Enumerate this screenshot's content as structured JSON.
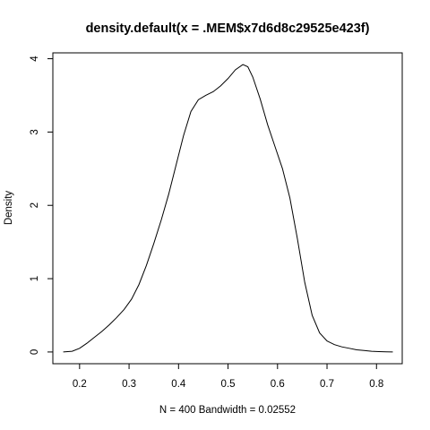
{
  "chart_data": {
    "type": "line",
    "title": "density.default(x = .MEM$x7d6d8c29525e423f)",
    "xlabel": "N = 400   Bandwidth = 0.02552",
    "ylabel": "Density",
    "xlim": [
      0.146,
      0.852
    ],
    "ylim": [
      -0.16,
      4.08
    ],
    "x_ticks": [
      0.2,
      0.3,
      0.4,
      0.5,
      0.6,
      0.7,
      0.8
    ],
    "x_tick_labels": [
      "0.2",
      "0.3",
      "0.4",
      "0.5",
      "0.6",
      "0.7",
      "0.8"
    ],
    "y_ticks": [
      0,
      1,
      2,
      3,
      4
    ],
    "y_tick_labels": [
      "0",
      "1",
      "2",
      "3",
      "4"
    ],
    "grid": false,
    "legend": "none",
    "series": [
      {
        "color": "#000000",
        "x": [
          0.167,
          0.185,
          0.2,
          0.215,
          0.23,
          0.245,
          0.26,
          0.275,
          0.29,
          0.305,
          0.32,
          0.335,
          0.35,
          0.365,
          0.38,
          0.395,
          0.41,
          0.425,
          0.44,
          0.455,
          0.47,
          0.485,
          0.5,
          0.515,
          0.53,
          0.54,
          0.55,
          0.565,
          0.58,
          0.595,
          0.61,
          0.625,
          0.64,
          0.655,
          0.67,
          0.685,
          0.7,
          0.715,
          0.73,
          0.745,
          0.76,
          0.775,
          0.79,
          0.805,
          0.82,
          0.833
        ],
        "y": [
          0.0,
          0.01,
          0.05,
          0.12,
          0.2,
          0.28,
          0.37,
          0.47,
          0.58,
          0.72,
          0.92,
          1.18,
          1.48,
          1.8,
          2.15,
          2.55,
          2.95,
          3.28,
          3.44,
          3.5,
          3.55,
          3.63,
          3.73,
          3.85,
          3.92,
          3.89,
          3.75,
          3.45,
          3.1,
          2.8,
          2.5,
          2.1,
          1.55,
          0.95,
          0.5,
          0.26,
          0.15,
          0.1,
          0.07,
          0.05,
          0.03,
          0.02,
          0.01,
          0.005,
          0.002,
          0.0
        ]
      }
    ]
  }
}
